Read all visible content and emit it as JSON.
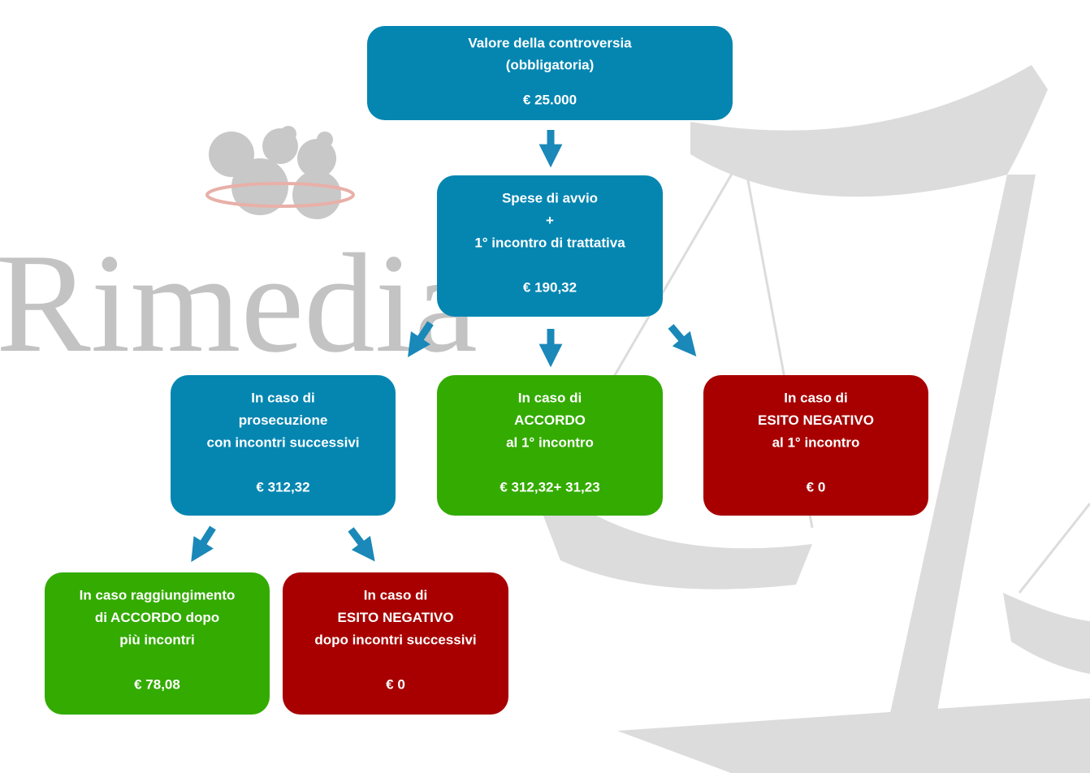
{
  "watermark": "Rimedia",
  "nodes": [
    {
      "color": "#0486b1",
      "lines": [
        "Valore della controversia",
        "(obbligatoria)"
      ],
      "amount": "€ 25.000"
    },
    {
      "color": "#0486b1",
      "lines": [
        "Spese di avvio",
        "+",
        "1° incontro di trattativa"
      ],
      "amount": "€ 190,32"
    },
    {
      "color": "#0486b1",
      "lines": [
        "In caso di",
        "prosecuzione",
        "con incontri successivi"
      ],
      "amount": "€ 312,32"
    },
    {
      "color": "#33ab00",
      "lines": [
        "In caso di",
        "ACCORDO",
        "al 1° incontro"
      ],
      "amount": "€ 312,32+ 31,23"
    },
    {
      "color": "#a80000",
      "lines": [
        "In caso di",
        "ESITO NEGATIVO",
        "al 1° incontro"
      ],
      "amount": "€ 0"
    },
    {
      "color": "#33ab00",
      "lines": [
        "In caso raggiungimento",
        "di ACCORDO dopo",
        "più incontri"
      ],
      "amount": "€ 78,08"
    },
    {
      "color": "#a80000",
      "lines": [
        "In caso di",
        "ESITO NEGATIVO",
        "dopo incontri successivi"
      ],
      "amount": "€ 0"
    }
  ]
}
